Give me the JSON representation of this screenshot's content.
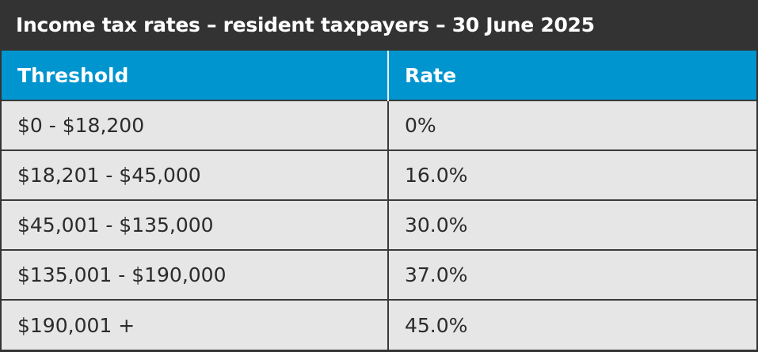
{
  "title": "Income tax rates – resident taxpayers – 30 June 2025",
  "headers": {
    "threshold": "Threshold",
    "rate": "Rate"
  },
  "rows": [
    {
      "threshold": "$0 - $18,200",
      "rate": "0%"
    },
    {
      "threshold": "$18,201 - $45,000",
      "rate": "16.0%"
    },
    {
      "threshold": "$45,001 - $135,000",
      "rate": "30.0%"
    },
    {
      "threshold": "$135,001 - $190,000",
      "rate": "37.0%"
    },
    {
      "threshold": "$190,001 +",
      "rate": "45.0%"
    }
  ],
  "colors": {
    "title_bg": "#333333",
    "header_bg": "#0095cf",
    "cell_bg": "#e6e6e6"
  }
}
